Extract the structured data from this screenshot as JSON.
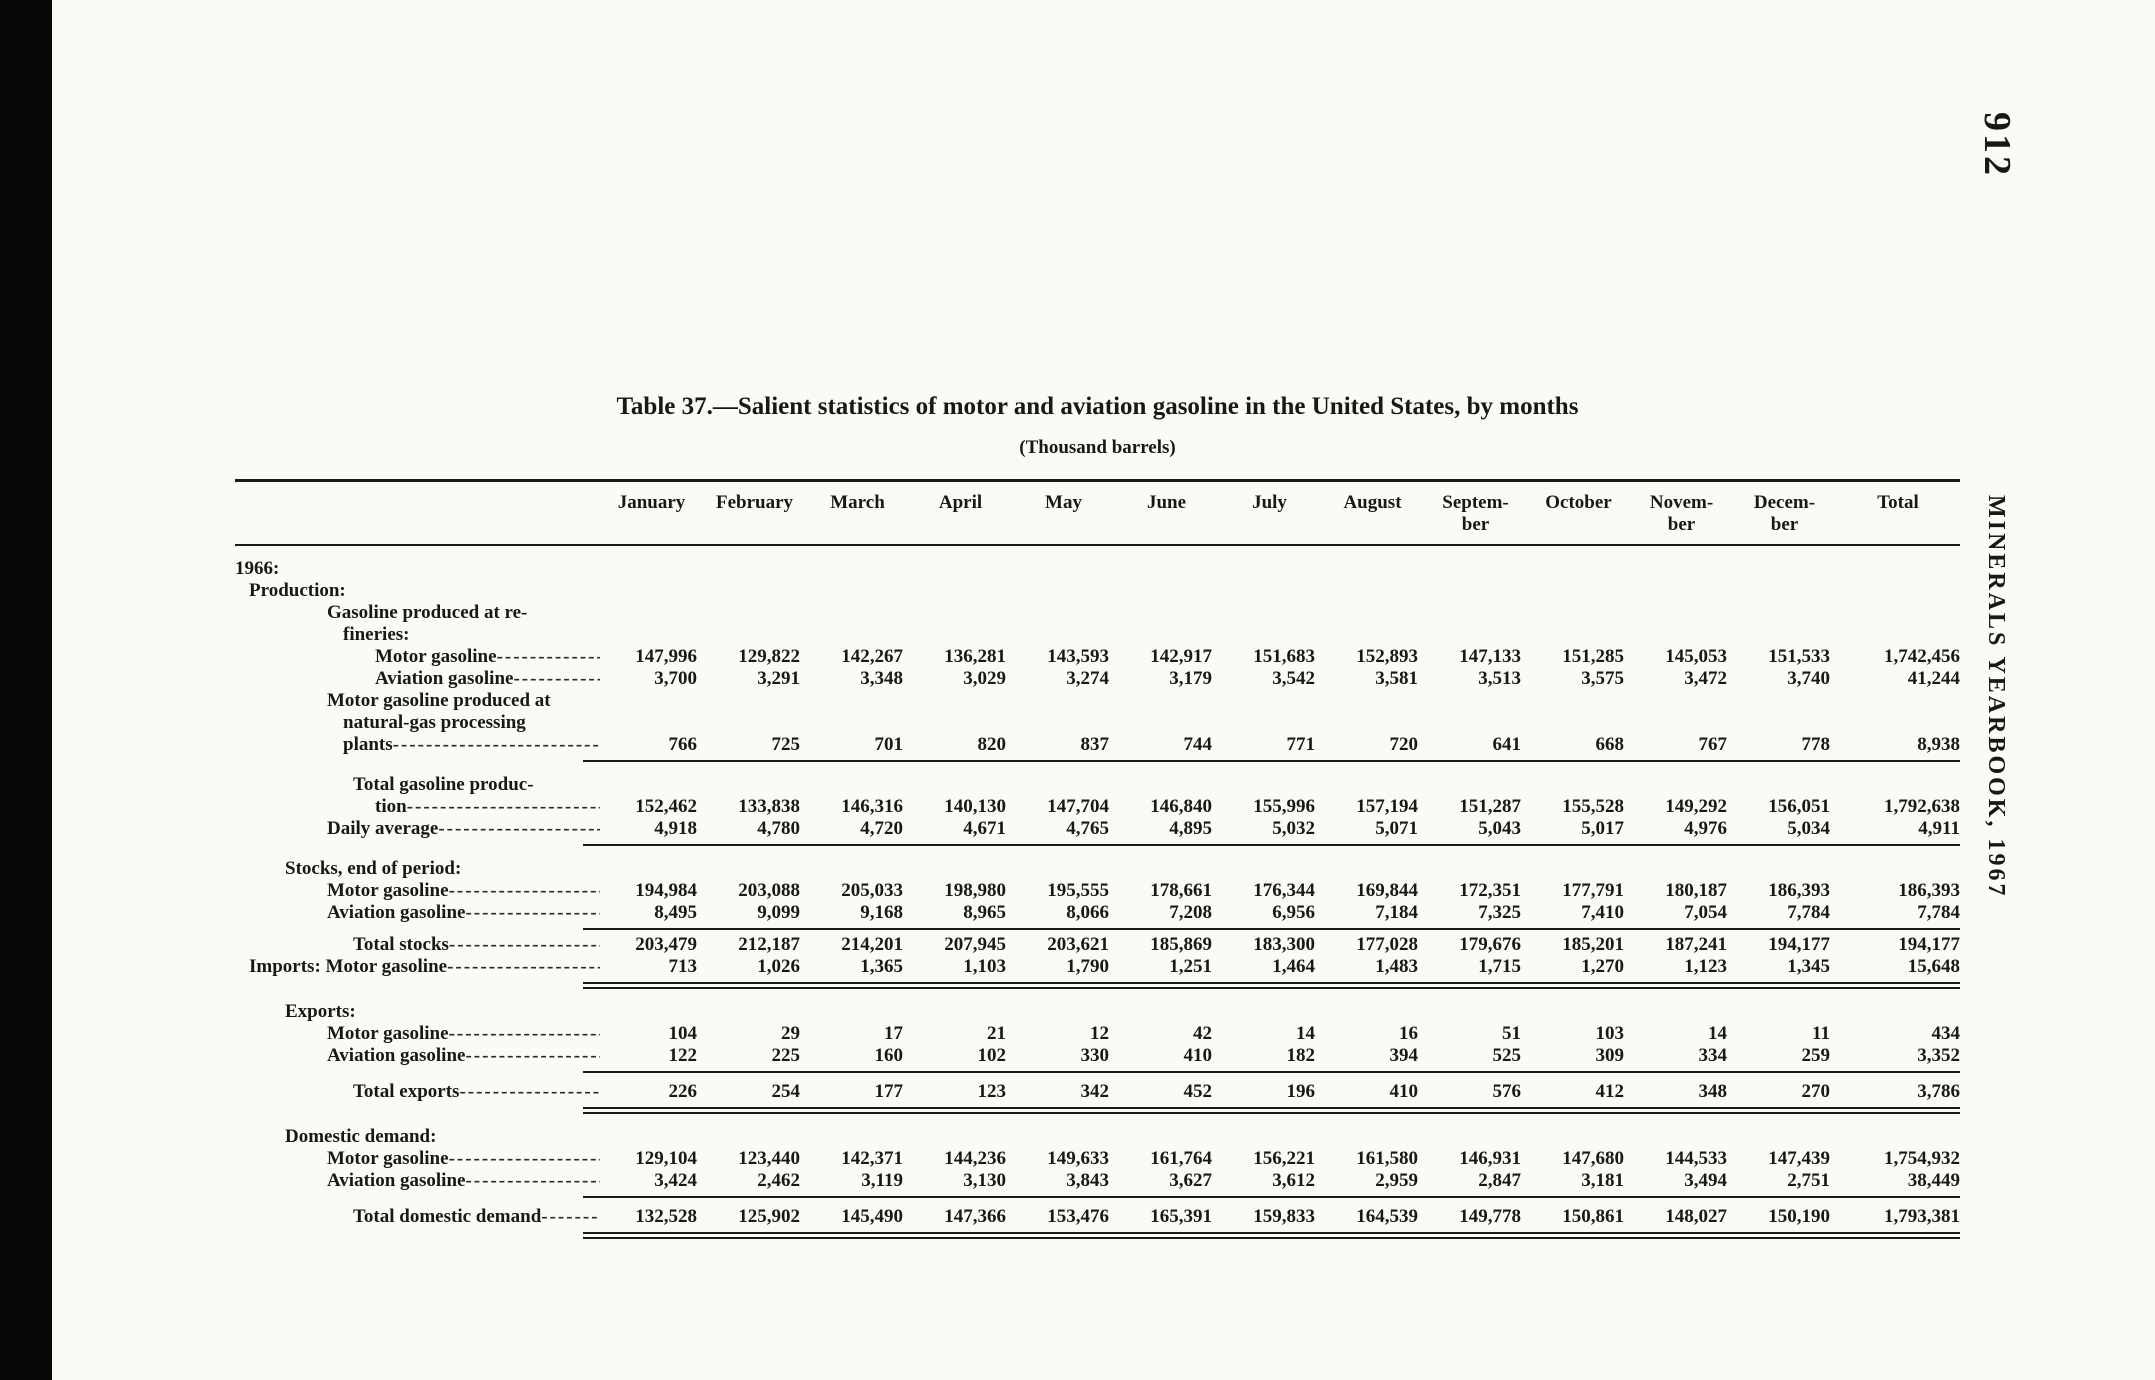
{
  "page": {
    "page_number": "912",
    "journal_side_label": "MINERALS YEARBOOK, 1967"
  },
  "table": {
    "title": "Table 37.—Salient statistics of motor and aviation gasoline in the United States, by months",
    "subtitle": "(Thousand barrels)",
    "columns": [
      {
        "lines": [
          "January"
        ]
      },
      {
        "lines": [
          "February"
        ]
      },
      {
        "lines": [
          "March"
        ]
      },
      {
        "lines": [
          "April"
        ]
      },
      {
        "lines": [
          "May"
        ]
      },
      {
        "lines": [
          "June"
        ]
      },
      {
        "lines": [
          "July"
        ]
      },
      {
        "lines": [
          "August"
        ]
      },
      {
        "lines": [
          "Septem-",
          "ber"
        ]
      },
      {
        "lines": [
          "October"
        ]
      },
      {
        "lines": [
          "Novem-",
          "ber"
        ]
      },
      {
        "lines": [
          "Decem-",
          "ber"
        ]
      },
      {
        "lines": [
          "Total"
        ]
      }
    ],
    "rows": [
      {
        "type": "label",
        "indent": 0,
        "text": "1966:"
      },
      {
        "type": "label",
        "indent": 1,
        "text": "Production:"
      },
      {
        "type": "label",
        "indent": 3,
        "text": "Gasoline produced at re-"
      },
      {
        "type": "label",
        "indent": 4,
        "text": "fineries:"
      },
      {
        "type": "data",
        "indent": 6,
        "text": "Motor gasoline",
        "leader": true,
        "values": [
          "147,996",
          "129,822",
          "142,267",
          "136,281",
          "143,593",
          "142,917",
          "151,683",
          "152,893",
          "147,133",
          "151,285",
          "145,053",
          "151,533",
          "1,742,456"
        ]
      },
      {
        "type": "data",
        "indent": 6,
        "text": "Aviation gasoline",
        "leader": true,
        "values": [
          "3,700",
          "3,291",
          "3,348",
          "3,029",
          "3,274",
          "3,179",
          "3,542",
          "3,581",
          "3,513",
          "3,575",
          "3,472",
          "3,740",
          "41,244"
        ]
      },
      {
        "type": "label",
        "indent": 3,
        "text": "Motor gasoline produced at"
      },
      {
        "type": "label",
        "indent": 4,
        "text": "natural-gas  processing"
      },
      {
        "type": "data",
        "indent": 4,
        "text": "plants",
        "leader": true,
        "values": [
          "766",
          "725",
          "701",
          "820",
          "837",
          "744",
          "771",
          "720",
          "641",
          "668",
          "767",
          "778",
          "8,938"
        ]
      },
      {
        "type": "rule",
        "style": "single"
      },
      {
        "type": "gap",
        "h": 8
      },
      {
        "type": "label",
        "indent": 5,
        "text": "Total gasoline produc-"
      },
      {
        "type": "data",
        "indent": 6,
        "text": "tion",
        "leader": true,
        "values": [
          "152,462",
          "133,838",
          "146,316",
          "140,130",
          "147,704",
          "146,840",
          "155,996",
          "157,194",
          "151,287",
          "155,528",
          "149,292",
          "156,051",
          "1,792,638"
        ]
      },
      {
        "type": "data",
        "indent": 3,
        "text": "Daily average",
        "leader": true,
        "values": [
          "4,918",
          "4,780",
          "4,720",
          "4,671",
          "4,765",
          "4,895",
          "5,032",
          "5,071",
          "5,043",
          "5,017",
          "4,976",
          "5,034",
          "4,911"
        ]
      },
      {
        "type": "rule",
        "style": "single"
      },
      {
        "type": "gap",
        "h": 8
      },
      {
        "type": "label",
        "indent": 2,
        "text": "Stocks, end of period:"
      },
      {
        "type": "data",
        "indent": 3,
        "text": "Motor gasoline",
        "leader": true,
        "values": [
          "194,984",
          "203,088",
          "205,033",
          "198,980",
          "195,555",
          "178,661",
          "176,344",
          "169,844",
          "172,351",
          "177,791",
          "180,187",
          "186,393",
          "186,393"
        ]
      },
      {
        "type": "data",
        "indent": 3,
        "text": "Aviation gasoline",
        "leader": true,
        "values": [
          "8,495",
          "9,099",
          "9,168",
          "8,965",
          "8,066",
          "7,208",
          "6,956",
          "7,184",
          "7,325",
          "7,410",
          "7,054",
          "7,784",
          "7,784"
        ]
      },
      {
        "type": "rule",
        "style": "single"
      },
      {
        "type": "data",
        "indent": 5,
        "text": "Total stocks",
        "leader": true,
        "values": [
          "203,479",
          "212,187",
          "214,201",
          "207,945",
          "203,621",
          "185,869",
          "183,300",
          "177,028",
          "179,676",
          "185,201",
          "187,241",
          "194,177",
          "194,177"
        ]
      },
      {
        "type": "data",
        "indent": 1,
        "text": "Imports: Motor gasoline",
        "leader": true,
        "values": [
          "713",
          "1,026",
          "1,365",
          "1,103",
          "1,790",
          "1,251",
          "1,464",
          "1,483",
          "1,715",
          "1,270",
          "1,123",
          "1,345",
          "15,648"
        ]
      },
      {
        "type": "rule",
        "style": "double"
      },
      {
        "type": "gap",
        "h": 8
      },
      {
        "type": "label",
        "indent": 2,
        "text": "Exports:"
      },
      {
        "type": "data",
        "indent": 3,
        "text": "Motor gasoline",
        "leader": true,
        "values": [
          "104",
          "29",
          "17",
          "21",
          "12",
          "42",
          "14",
          "16",
          "51",
          "103",
          "14",
          "11",
          "434"
        ]
      },
      {
        "type": "data",
        "indent": 3,
        "text": "Aviation gasoline",
        "leader": true,
        "values": [
          "122",
          "225",
          "160",
          "102",
          "330",
          "410",
          "182",
          "394",
          "525",
          "309",
          "334",
          "259",
          "3,352"
        ]
      },
      {
        "type": "rule",
        "style": "single"
      },
      {
        "type": "gap",
        "h": 4
      },
      {
        "type": "data",
        "indent": 5,
        "text": "Total exports",
        "leader": true,
        "values": [
          "226",
          "254",
          "177",
          "123",
          "342",
          "452",
          "196",
          "410",
          "576",
          "412",
          "348",
          "270",
          "3,786"
        ]
      },
      {
        "type": "rule",
        "style": "double"
      },
      {
        "type": "gap",
        "h": 8
      },
      {
        "type": "label",
        "indent": 2,
        "text": "Domestic demand:"
      },
      {
        "type": "data",
        "indent": 3,
        "text": "Motor gasoline",
        "leader": true,
        "values": [
          "129,104",
          "123,440",
          "142,371",
          "144,236",
          "149,633",
          "161,764",
          "156,221",
          "161,580",
          "146,931",
          "147,680",
          "144,533",
          "147,439",
          "1,754,932"
        ]
      },
      {
        "type": "data",
        "indent": 3,
        "text": "Aviation gasoline",
        "leader": true,
        "values": [
          "3,424",
          "2,462",
          "3,119",
          "3,130",
          "3,843",
          "3,627",
          "3,612",
          "2,959",
          "2,847",
          "3,181",
          "3,494",
          "2,751",
          "38,449"
        ]
      },
      {
        "type": "rule",
        "style": "single"
      },
      {
        "type": "gap",
        "h": 4
      },
      {
        "type": "data",
        "indent": 5,
        "text": "Total domestic demand",
        "leader": true,
        "values": [
          "132,528",
          "125,902",
          "145,490",
          "147,366",
          "153,476",
          "165,391",
          "159,833",
          "164,539",
          "149,778",
          "150,861",
          "148,027",
          "150,190",
          "1,793,381"
        ]
      },
      {
        "type": "rule",
        "style": "double"
      }
    ]
  }
}
